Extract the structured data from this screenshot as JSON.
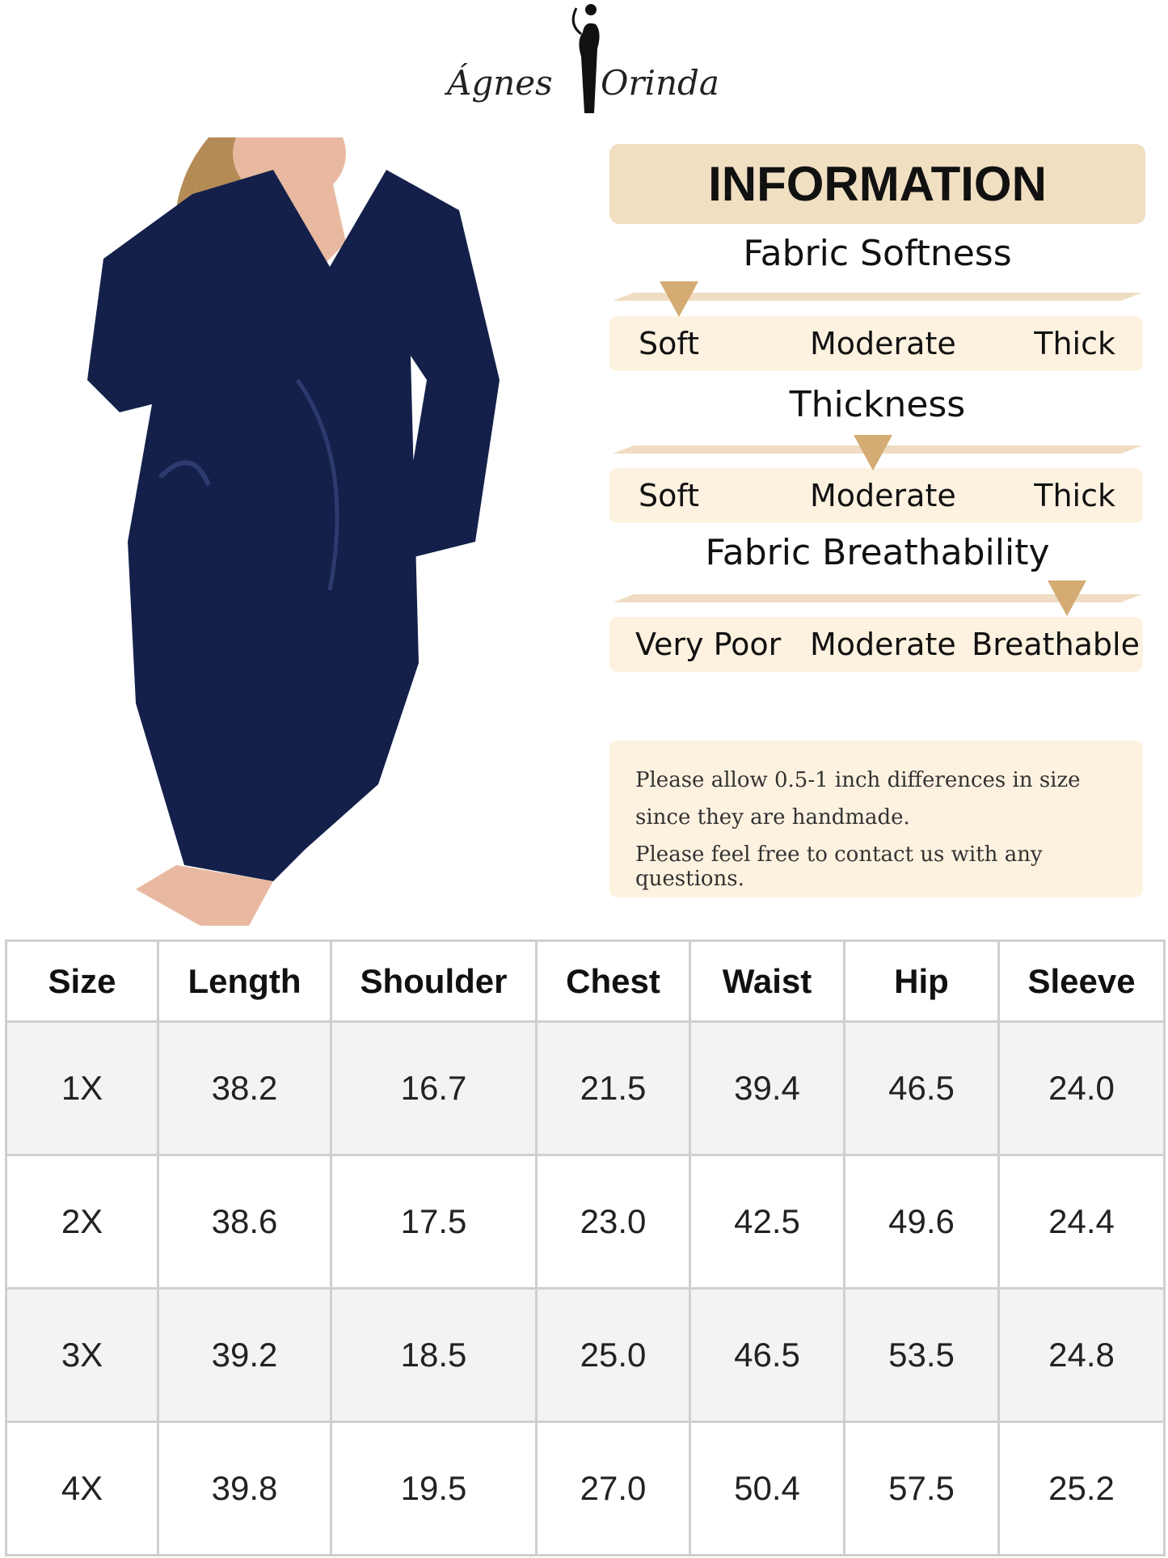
{
  "brand": {
    "logo_text_left": "Ágnes",
    "logo_text_right": "Orinda"
  },
  "product_image": {
    "color": "#14204a"
  },
  "info": {
    "title": "INFORMATION",
    "accent_color": "#d3ab73",
    "scales": [
      {
        "title": "Fabric Softness",
        "labels": [
          "Soft",
          "Moderate",
          "Thick"
        ],
        "level": 0.1
      },
      {
        "title": "Thickness",
        "labels": [
          "Soft",
          "Moderate",
          "Thick"
        ],
        "level": 0.5
      },
      {
        "title": "Fabric Breathability",
        "labels": [
          "Very Poor",
          "Moderate",
          "Breathable"
        ],
        "level": 0.9
      }
    ]
  },
  "note": {
    "lines": [
      "Please allow 0.5-1 inch differences in size",
      "since they are handmade.",
      "Please feel free to contact us with any questions."
    ]
  },
  "size_table": {
    "headers": [
      "Size",
      "Length",
      "Shoulder",
      "Chest",
      "Waist",
      "Hip",
      "Sleeve"
    ],
    "rows": [
      [
        "1X",
        "38.2",
        "16.7",
        "21.5",
        "39.4",
        "46.5",
        "24.0"
      ],
      [
        "2X",
        "38.6",
        "17.5",
        "23.0",
        "42.5",
        "49.6",
        "24.4"
      ],
      [
        "3X",
        "39.2",
        "18.5",
        "25.0",
        "46.5",
        "53.5",
        "24.8"
      ],
      [
        "4X",
        "39.8",
        "19.5",
        "27.0",
        "50.4",
        "57.5",
        "25.2"
      ]
    ]
  }
}
